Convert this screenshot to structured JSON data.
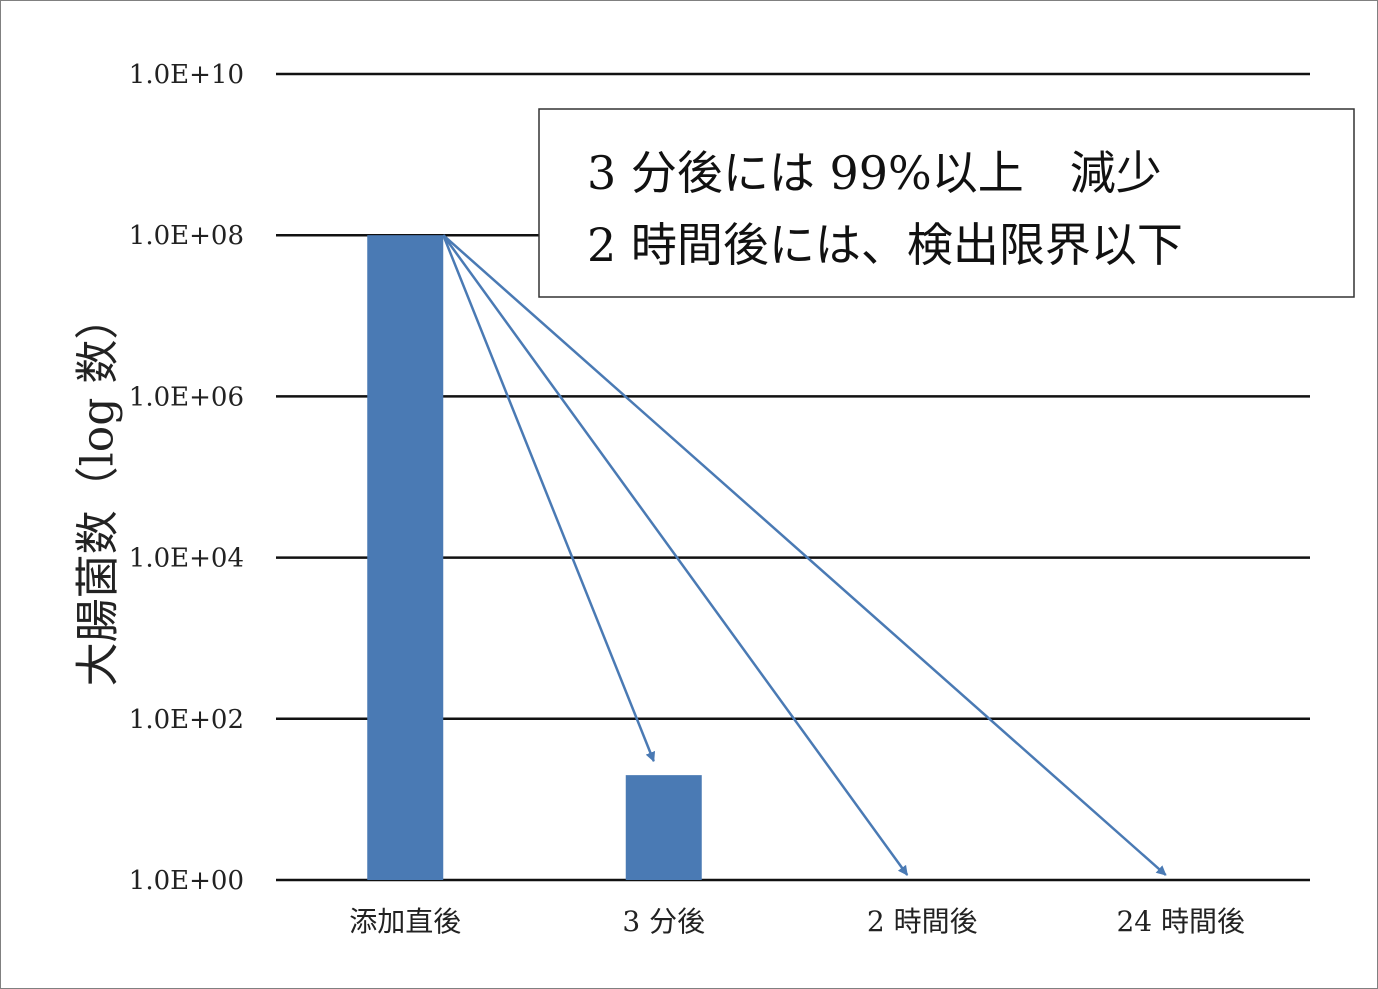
{
  "chart_data": {
    "type": "bar",
    "scale": "log",
    "ylabel": "大腸菌数（log 数）",
    "xlabel": "",
    "ylim": [
      1,
      10000000000
    ],
    "yticks": [
      {
        "value": 1,
        "label": "1.0E+00"
      },
      {
        "value": 100,
        "label": "1.0E+02"
      },
      {
        "value": 10000,
        "label": "1.0E+04"
      },
      {
        "value": 1000000,
        "label": "1.0E+06"
      },
      {
        "value": 100000000,
        "label": "1.0E+08"
      },
      {
        "value": 10000000000,
        "label": "1.0E+10"
      }
    ],
    "categories": [
      "添加直後",
      "3 分後",
      "2 時間後",
      "24 時間後"
    ],
    "values": [
      100000000,
      20,
      null,
      null
    ],
    "grid": true,
    "bar_color": "#4a7ab4",
    "arrow_color": "#4a7ab4",
    "arrows": [
      {
        "from": "添加直後",
        "to": "3 分後"
      },
      {
        "from": "添加直後",
        "to": "2 時間後"
      },
      {
        "from": "添加直後",
        "to": "24 時間後"
      }
    ],
    "annotation_lines": [
      "3 分後には 99%以上　減少",
      "2 時間後には、検出限界以下"
    ]
  }
}
